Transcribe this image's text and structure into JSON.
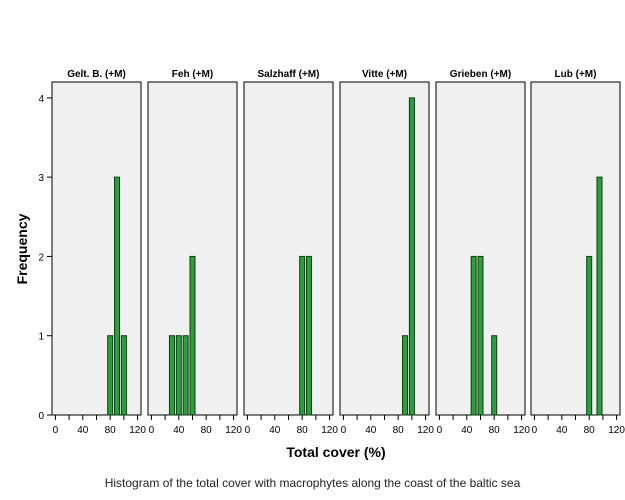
{
  "caption": "Histogram of the total cover with macrophytes along the coast of the baltic sea",
  "colors": {
    "bar_fill": "#2e9e3e",
    "bar_stroke": "#0b3d12",
    "panel_bg": "#f0f0f0",
    "panel_border": "#000000"
  },
  "chart_data": {
    "type": "bar",
    "xlabel": "Total cover (%)",
    "ylabel": "Frequency",
    "xlim": [
      -5,
      125
    ],
    "ylim": [
      0,
      4.2
    ],
    "x_ticks": [
      0,
      20,
      40,
      60,
      80,
      100,
      120
    ],
    "x_tick_labels": [
      "0",
      "",
      "40",
      "",
      "80",
      "",
      "120"
    ],
    "y_ticks": [
      0,
      1,
      2,
      3,
      4
    ],
    "panels": [
      {
        "title": "Gelt. B.  (+M)",
        "bars": [
          {
            "x": 80,
            "y": 1
          },
          {
            "x": 90,
            "y": 3
          },
          {
            "x": 100,
            "y": 1
          }
        ]
      },
      {
        "title": "Feh (+M)",
        "bars": [
          {
            "x": 30,
            "y": 1
          },
          {
            "x": 40,
            "y": 1
          },
          {
            "x": 50,
            "y": 1
          },
          {
            "x": 60,
            "y": 2
          }
        ]
      },
      {
        "title": "Salzhaff (+M)",
        "bars": [
          {
            "x": 80,
            "y": 2
          },
          {
            "x": 90,
            "y": 2
          }
        ]
      },
      {
        "title": "Vitte (+M)",
        "bars": [
          {
            "x": 90,
            "y": 1
          },
          {
            "x": 100,
            "y": 4
          }
        ]
      },
      {
        "title": "Grieben (+M)",
        "bars": [
          {
            "x": 50,
            "y": 2
          },
          {
            "x": 60,
            "y": 2
          },
          {
            "x": 80,
            "y": 1
          }
        ]
      },
      {
        "title": "Lub (+M)",
        "bars": [
          {
            "x": 80,
            "y": 2
          },
          {
            "x": 95,
            "y": 3
          }
        ]
      }
    ]
  }
}
